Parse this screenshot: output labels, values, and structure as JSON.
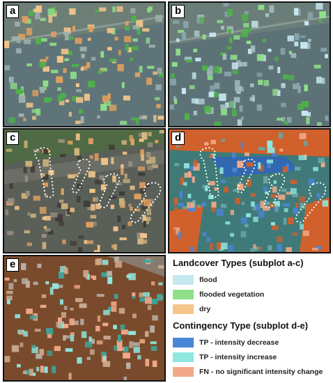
{
  "panels": [
    {
      "id": "a",
      "label": "a"
    },
    {
      "id": "b",
      "label": "b"
    },
    {
      "id": "c",
      "label": "c"
    },
    {
      "id": "d",
      "label": "d"
    },
    {
      "id": "e",
      "label": "e"
    }
  ],
  "legend": {
    "landcover_title": "Landcover Types (subplot a-c)",
    "landcover_items": [
      {
        "label": "flood",
        "color": "#c6e8f2"
      },
      {
        "label": "flooded vegetation",
        "color": "#8fe08a"
      },
      {
        "label": "dry",
        "color": "#f5c68a"
      }
    ],
    "contingency_title": "Contingency Type (subplot d-e)",
    "contingency_items": [
      {
        "label": "TP - intensity decrease",
        "color": "#4a86d6"
      },
      {
        "label": "TP - intensity increase",
        "color": "#8ee8e0"
      },
      {
        "label": "FN - no significant intensity change",
        "color": "#f2a98a"
      }
    ]
  }
}
